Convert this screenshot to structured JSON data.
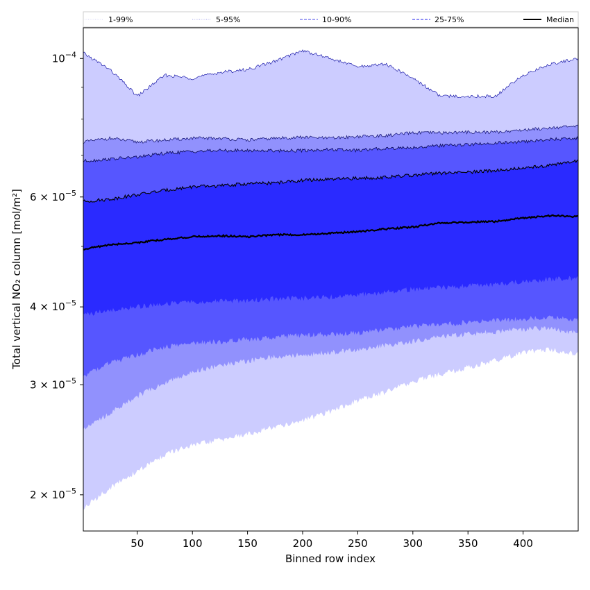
{
  "chart_data": {
    "type": "area",
    "xlabel": "Binned row index",
    "ylabel": "Total vertical NO₂ column [mol/m²]",
    "xlim": [
      1,
      450
    ],
    "ylim": [
      1.75e-05,
      0.000112
    ],
    "yscale": "log",
    "xticks": [
      50,
      100,
      150,
      200,
      250,
      300,
      350,
      400
    ],
    "yticks": [
      {
        "value": 0.0001,
        "mant": "10",
        "exp": "−4"
      },
      {
        "value": 6e-05,
        "mant": "6 × 10",
        "exp": "−5"
      },
      {
        "value": 4e-05,
        "mant": "4 × 10",
        "exp": "−5"
      },
      {
        "value": 3e-05,
        "mant": "3 × 10",
        "exp": "−5"
      },
      {
        "value": 2e-05,
        "mant": "2 × 10",
        "exp": "−5"
      }
    ],
    "legend_position": "top",
    "legend": [
      {
        "label": "1-99%",
        "style": "dotted",
        "color": "#c9c9f4"
      },
      {
        "label": "5-95%",
        "style": "dotted",
        "color": "#8f8fe6"
      },
      {
        "label": "10-90%",
        "style": "dashed",
        "color": "#6a6aee"
      },
      {
        "label": "25-75%",
        "style": "dashed",
        "color": "#4c4cf0"
      },
      {
        "label": "Median",
        "style": "solid",
        "color": "#000000"
      }
    ],
    "x": [
      1,
      25,
      50,
      75,
      100,
      125,
      150,
      175,
      200,
      225,
      250,
      275,
      300,
      325,
      350,
      375,
      400,
      425,
      450
    ],
    "bands": [
      {
        "name": "1-99%",
        "color": "#ccccff",
        "upper": [
          0.000102,
          9.6e-05,
          8.7e-05,
          9.4e-05,
          9.3e-05,
          9.5e-05,
          9.6e-05,
          9.9e-05,
          0.000103,
          0.0001,
          9.7e-05,
          9.8e-05,
          9.3e-05,
          8.7e-05,
          8.7e-05,
          8.7e-05,
          9.4e-05,
          9.8e-05,
          0.0001
        ],
        "lower": [
          1.9e-05,
          2.05e-05,
          2.18e-05,
          2.32e-05,
          2.4e-05,
          2.45e-05,
          2.5e-05,
          2.57e-05,
          2.63e-05,
          2.72e-05,
          2.83e-05,
          2.92e-05,
          3.04e-05,
          3.12e-05,
          3.2e-05,
          3.28e-05,
          3.38e-05,
          3.42e-05,
          3.35e-05
        ]
      },
      {
        "name": "5-95%",
        "color": "#9191fd",
        "upper": [
          7.35e-05,
          7.45e-05,
          7.35e-05,
          7.4e-05,
          7.45e-05,
          7.45e-05,
          7.4e-05,
          7.45e-05,
          7.48e-05,
          7.45e-05,
          7.5e-05,
          7.52e-05,
          7.6e-05,
          7.6e-05,
          7.62e-05,
          7.62e-05,
          7.68e-05,
          7.75e-05,
          7.78e-05
        ]
      },
      {
        "name": "10-90%",
        "color": "#5656ff",
        "upper": [
          6.85e-05,
          6.9e-05,
          6.95e-05,
          7.05e-05,
          7.1e-05,
          7.12e-05,
          7.12e-05,
          7.12e-05,
          7.12e-05,
          7.15e-05,
          7.12e-05,
          7.18e-05,
          7.2e-05,
          7.25e-05,
          7.28e-05,
          7.32e-05,
          7.35e-05,
          7.42e-05,
          7.45e-05
        ]
      },
      {
        "name": "25-75%",
        "color": "#2a2aff",
        "upper": [
          5.9e-05,
          5.95e-05,
          6.05e-05,
          6.15e-05,
          6.23e-05,
          6.25e-05,
          6.3e-05,
          6.32e-05,
          6.38e-05,
          6.4e-05,
          6.43e-05,
          6.45e-05,
          6.5e-05,
          6.55e-05,
          6.57e-05,
          6.62e-05,
          6.67e-05,
          6.75e-05,
          6.85e-05
        ]
      }
    ],
    "lower_bands": [
      {
        "name": "5-95%",
        "color": "#9191fd",
        "lower": [
          2.56e-05,
          2.7e-05,
          2.88e-05,
          3.02e-05,
          3.15e-05,
          3.22e-05,
          3.28e-05,
          3.33e-05,
          3.35e-05,
          3.38e-05,
          3.42e-05,
          3.47e-05,
          3.52e-05,
          3.58e-05,
          3.62e-05,
          3.65e-05,
          3.68e-05,
          3.7e-05,
          3.62e-05
        ]
      },
      {
        "name": "10-90%",
        "color": "#5656ff",
        "lower": [
          3.1e-05,
          3.25e-05,
          3.35e-05,
          3.45e-05,
          3.5e-05,
          3.52e-05,
          3.55e-05,
          3.58e-05,
          3.6e-05,
          3.62e-05,
          3.63e-05,
          3.68e-05,
          3.72e-05,
          3.75e-05,
          3.78e-05,
          3.8e-05,
          3.83e-05,
          3.85e-05,
          3.8e-05
        ]
      },
      {
        "name": "25-75%",
        "color": "#2a2aff",
        "lower": [
          3.88e-05,
          3.95e-05,
          4e-05,
          4.05e-05,
          4.07e-05,
          4.08e-05,
          4.1e-05,
          4.12e-05,
          4.13e-05,
          4.15e-05,
          4.18e-05,
          4.22e-05,
          4.27e-05,
          4.3e-05,
          4.32e-05,
          4.35e-05,
          4.4e-05,
          4.43e-05,
          4.45e-05
        ]
      }
    ],
    "median": [
      4.95e-05,
      5.03e-05,
      5.07e-05,
      5.13e-05,
      5.18e-05,
      5.2e-05,
      5.18e-05,
      5.22e-05,
      5.22e-05,
      5.25e-05,
      5.28e-05,
      5.33e-05,
      5.37e-05,
      5.45e-05,
      5.47e-05,
      5.48e-05,
      5.55e-05,
      5.6e-05,
      5.58e-05
    ]
  }
}
